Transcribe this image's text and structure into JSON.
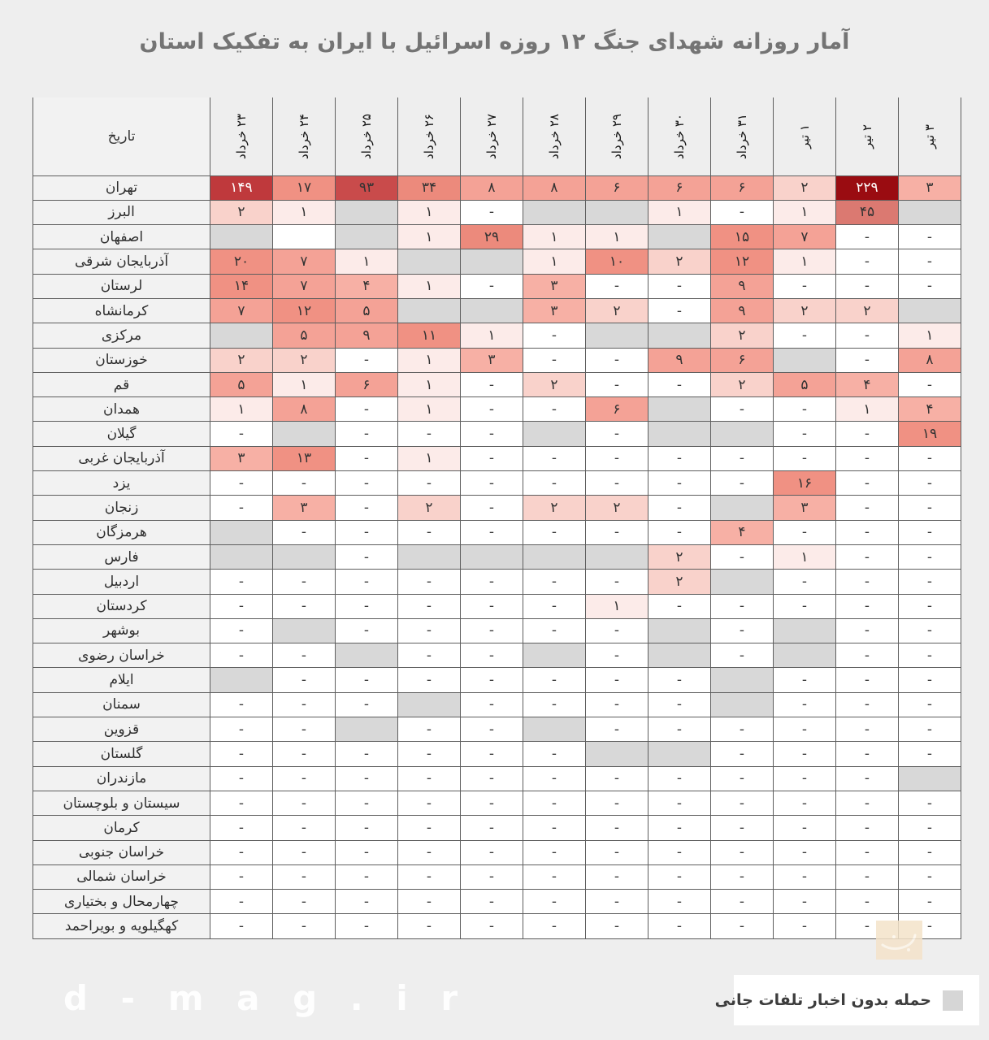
{
  "chart_data": {
    "type": "heatmap",
    "title": "آمار روزانه شهدای جنگ ۱۲ روزه اسرائیل با ایران به تفکیک استان",
    "row_header_label": "تاریخ",
    "columns": [
      "۲۳ خرداد",
      "۲۴ خرداد",
      "۲۵ خرداد",
      "۲۶ خرداد",
      "۲۷ خرداد",
      "۲۸ خرداد",
      "۲۹ خرداد",
      "۳۰ خرداد",
      "۳۱ خرداد",
      "۱ تیر",
      "۲ تیر",
      "۳ تیر"
    ],
    "cell_encoding": {
      "gray_token": "G",
      "no_data_token": "-",
      "empty_token": ""
    },
    "rows": [
      {
        "name": "تهران",
        "cells": [
          "۱۴۹",
          "۱۷",
          "۹۳",
          "۳۴",
          "۸",
          "۸",
          "۶",
          "۶",
          "۶",
          "۲",
          "۲۲۹",
          "۳"
        ]
      },
      {
        "name": "البرز",
        "cells": [
          "۲",
          "۱",
          "G",
          "۱",
          "-",
          "G",
          "G",
          "۱",
          "-",
          "۱",
          "۴۵",
          "G"
        ]
      },
      {
        "name": "اصفهان",
        "cells": [
          "G",
          "",
          "G",
          "۱",
          "۲۹",
          "۱",
          "۱",
          "G",
          "۱۵",
          "۷",
          "-",
          "-"
        ]
      },
      {
        "name": "آذربایجان شرقی",
        "cells": [
          "۲۰",
          "۷",
          "۱",
          "G",
          "G",
          "۱",
          "۱۰",
          "۲",
          "۱۲",
          "۱",
          "-",
          "-"
        ]
      },
      {
        "name": "لرستان",
        "cells": [
          "۱۴",
          "۷",
          "۴",
          "۱",
          "-",
          "۳",
          "-",
          "-",
          "۹",
          "-",
          "-",
          "-"
        ]
      },
      {
        "name": "کرمانشاه",
        "cells": [
          "۷",
          "۱۲",
          "۵",
          "G",
          "G",
          "۳",
          "۲",
          "-",
          "۹",
          "۲",
          "۲",
          "G"
        ]
      },
      {
        "name": "مرکزی",
        "cells": [
          "G",
          "۵",
          "۹",
          "۱۱",
          "۱",
          "-",
          "G",
          "G",
          "۲",
          "-",
          "-",
          "۱"
        ]
      },
      {
        "name": "خوزستان",
        "cells": [
          "۲",
          "۲",
          "-",
          "۱",
          "۳",
          "-",
          "-",
          "۹",
          "۶",
          "G",
          "-",
          "۸"
        ]
      },
      {
        "name": "قم",
        "cells": [
          "۵",
          "۱",
          "۶",
          "۱",
          "-",
          "۲",
          "-",
          "-",
          "۲",
          "۵",
          "۴",
          "-"
        ]
      },
      {
        "name": "همدان",
        "cells": [
          "۱",
          "۸",
          "-",
          "۱",
          "-",
          "-",
          "۶",
          "G",
          "-",
          "-",
          "۱",
          "۴"
        ]
      },
      {
        "name": "گیلان",
        "cells": [
          "-",
          "G",
          "-",
          "-",
          "-",
          "G",
          "-",
          "G",
          "G",
          "-",
          "-",
          "۱۹"
        ]
      },
      {
        "name": "آذربایجان غربی",
        "cells": [
          "۳",
          "۱۳",
          "-",
          "۱",
          "-",
          "-",
          "-",
          "-",
          "-",
          "-",
          "-",
          "-"
        ]
      },
      {
        "name": "یزد",
        "cells": [
          "-",
          "-",
          "-",
          "-",
          "-",
          "-",
          "-",
          "-",
          "-",
          "۱۶",
          "-",
          "-"
        ]
      },
      {
        "name": "زنجان",
        "cells": [
          "-",
          "۳",
          "-",
          "۲",
          "-",
          "۲",
          "۲",
          "-",
          "G",
          "۳",
          "-",
          "-"
        ]
      },
      {
        "name": "هرمزگان",
        "cells": [
          "G",
          "-",
          "-",
          "-",
          "-",
          "-",
          "-",
          "-",
          "۴",
          "-",
          "-",
          "-"
        ]
      },
      {
        "name": "فارس",
        "cells": [
          "G",
          "G",
          "-",
          "G",
          "G",
          "G",
          "G",
          "۲",
          "-",
          "۱",
          "-",
          "-"
        ]
      },
      {
        "name": "اردبیل",
        "cells": [
          "-",
          "-",
          "-",
          "-",
          "-",
          "-",
          "-",
          "۲",
          "G",
          "-",
          "-",
          "-"
        ]
      },
      {
        "name": "کردستان",
        "cells": [
          "-",
          "-",
          "-",
          "-",
          "-",
          "-",
          "۱",
          "-",
          "-",
          "-",
          "-",
          "-"
        ]
      },
      {
        "name": "بوشهر",
        "cells": [
          "-",
          "G",
          "-",
          "-",
          "-",
          "-",
          "-",
          "G",
          "-",
          "G",
          "-",
          "-"
        ]
      },
      {
        "name": "خراسان رضوی",
        "cells": [
          "-",
          "-",
          "G",
          "-",
          "-",
          "G",
          "-",
          "G",
          "-",
          "G",
          "-",
          "-"
        ]
      },
      {
        "name": "ایلام",
        "cells": [
          "G",
          "-",
          "-",
          "-",
          "-",
          "-",
          "-",
          "-",
          "G",
          "-",
          "-",
          "-"
        ]
      },
      {
        "name": "سمنان",
        "cells": [
          "-",
          "-",
          "-",
          "G",
          "-",
          "-",
          "-",
          "-",
          "G",
          "-",
          "-",
          "-"
        ]
      },
      {
        "name": "قزوین",
        "cells": [
          "-",
          "-",
          "G",
          "-",
          "-",
          "G",
          "-",
          "-",
          "-",
          "-",
          "-",
          "-"
        ]
      },
      {
        "name": "گلستان",
        "cells": [
          "-",
          "-",
          "-",
          "-",
          "-",
          "-",
          "G",
          "G",
          "-",
          "-",
          "-",
          "-"
        ]
      },
      {
        "name": "مازندران",
        "cells": [
          "-",
          "-",
          "-",
          "-",
          "-",
          "-",
          "-",
          "-",
          "-",
          "-",
          "-",
          "G"
        ]
      },
      {
        "name": "سیستان و بلوچستان",
        "cells": [
          "-",
          "-",
          "-",
          "-",
          "-",
          "-",
          "-",
          "-",
          "-",
          "-",
          "-",
          "-"
        ]
      },
      {
        "name": "کرمان",
        "cells": [
          "-",
          "-",
          "-",
          "-",
          "-",
          "-",
          "-",
          "-",
          "-",
          "-",
          "-",
          "-"
        ]
      },
      {
        "name": "خراسان جنوبی",
        "cells": [
          "-",
          "-",
          "-",
          "-",
          "-",
          "-",
          "-",
          "-",
          "-",
          "-",
          "-",
          "-"
        ]
      },
      {
        "name": "خراسان شمالی",
        "cells": [
          "-",
          "-",
          "-",
          "-",
          "-",
          "-",
          "-",
          "-",
          "-",
          "-",
          "-",
          "-"
        ]
      },
      {
        "name": "چهارمحال و بختیاری",
        "cells": [
          "-",
          "-",
          "-",
          "-",
          "-",
          "-",
          "-",
          "-",
          "-",
          "-",
          "-",
          "-"
        ]
      },
      {
        "name": "کهگیلویه و بویراحمد",
        "cells": [
          "-",
          "-",
          "-",
          "-",
          "-",
          "-",
          "-",
          "-",
          "-",
          "-",
          "-",
          "-"
        ]
      }
    ],
    "legend": {
      "label": "حمله بدون اخبار تلفات جانی"
    }
  },
  "watermark": "d - m a g . i r",
  "colors": {
    "page_bg": "#eeeeee",
    "label_bg": "#f2f2f2",
    "cell_bg": "#ffffff",
    "gray_cell": "#d8d8d8",
    "legend_swatch": "#d6d6d6",
    "grid_line": "#5e5e5e",
    "scale": [
      {
        "max": 1,
        "bg": "#fcebe9",
        "fg": "#333333"
      },
      {
        "max": 2,
        "bg": "#f9d2cb",
        "fg": "#333333"
      },
      {
        "max": 4,
        "bg": "#f7b0a5",
        "fg": "#333333"
      },
      {
        "max": 9,
        "bg": "#f4a296",
        "fg": "#333333"
      },
      {
        "max": 24,
        "bg": "#f09183",
        "fg": "#333333"
      },
      {
        "max": 39,
        "bg": "#ec8a7c",
        "fg": "#333333"
      },
      {
        "max": 69,
        "bg": "#db7971",
        "fg": "#333333"
      },
      {
        "max": 119,
        "bg": "#c94b4b",
        "fg": "#333333"
      },
      {
        "max": 199,
        "bg": "#bf393c",
        "fg": "#ffffff"
      },
      {
        "max": 9999,
        "bg": "#9a0c11",
        "fg": "#ffffff"
      }
    ]
  }
}
